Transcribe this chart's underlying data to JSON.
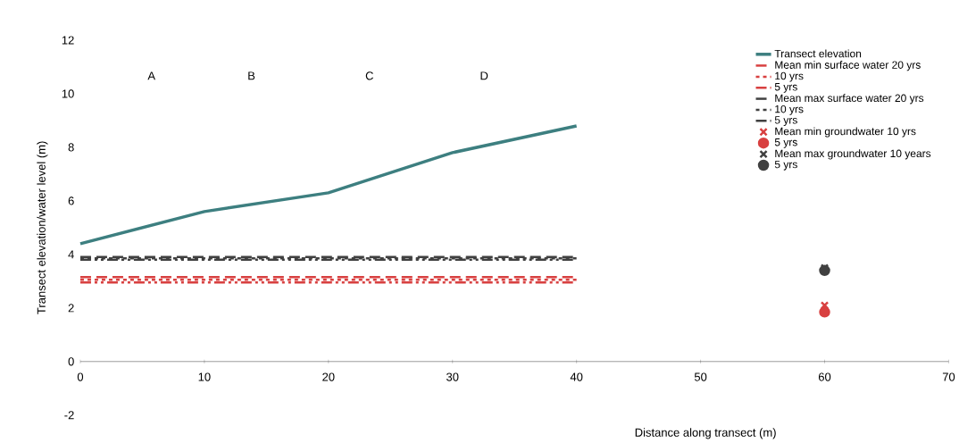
{
  "chart_data": {
    "type": "line",
    "xlabel": "Distance along transect (m)",
    "ylabel": "Transect elevation/water level (m)",
    "xlim": [
      0,
      70
    ],
    "ylim": [
      -2,
      12
    ],
    "xticks": [
      0,
      10,
      20,
      30,
      40,
      50,
      60,
      70
    ],
    "yticks": [
      -2,
      0,
      2,
      4,
      6,
      8,
      10,
      12
    ],
    "grid": false,
    "legend": "top right",
    "marker": "none",
    "annotations": [
      "A",
      "B",
      "C",
      "D"
    ],
    "series": [
      {
        "name": "Transect elevation",
        "color": "#3d7f80",
        "line_style": "solid",
        "x": [
          0,
          10,
          20,
          30,
          40
        ],
        "values": [
          4.4,
          5.6,
          6.3,
          7.8,
          8.8
        ]
      },
      {
        "name": "Mean min surface water 20 yrs",
        "color": "#d84040",
        "line_style": "dashed",
        "x": [
          0,
          40
        ],
        "values": [
          3.15,
          3.15
        ]
      },
      {
        "name": "10 yrs",
        "color": "#d84040",
        "line_style": "dotted",
        "x": [
          0,
          40
        ],
        "values": [
          3.05,
          3.05
        ]
      },
      {
        "name": "5 yrs",
        "color": "#d84040",
        "line_style": "dashdot",
        "x": [
          0,
          40
        ],
        "values": [
          2.95,
          2.95
        ]
      },
      {
        "name": "Mean max surface water 20 yrs",
        "color": "#404040",
        "line_style": "dashed",
        "x": [
          0,
          40
        ],
        "values": [
          3.9,
          3.9
        ]
      },
      {
        "name": "10 yrs",
        "color": "#404040",
        "line_style": "dotted",
        "x": [
          0,
          40
        ],
        "values": [
          3.85,
          3.85
        ]
      },
      {
        "name": "5 yrs",
        "color": "#404040",
        "line_style": "dashdot",
        "x": [
          0,
          40
        ],
        "values": [
          3.8,
          3.8
        ]
      },
      {
        "name": "Mean min groundwater 10 yrs",
        "type": "scatter",
        "marker": "cross",
        "color": "#d84040",
        "x": [
          60
        ],
        "values": [
          2.1
        ]
      },
      {
        "name": "5 yrs",
        "type": "scatter",
        "marker": "circle",
        "color": "#d84040",
        "x": [
          60
        ],
        "values": [
          1.85
        ]
      },
      {
        "name": "Mean max groundwater 10 years",
        "type": "scatter",
        "marker": "cross",
        "color": "#404040",
        "x": [
          60
        ],
        "values": [
          3.5
        ]
      },
      {
        "name": "5 yrs",
        "type": "scatter",
        "marker": "circle",
        "color": "#404040",
        "x": [
          60
        ],
        "values": [
          3.4
        ]
      }
    ]
  }
}
